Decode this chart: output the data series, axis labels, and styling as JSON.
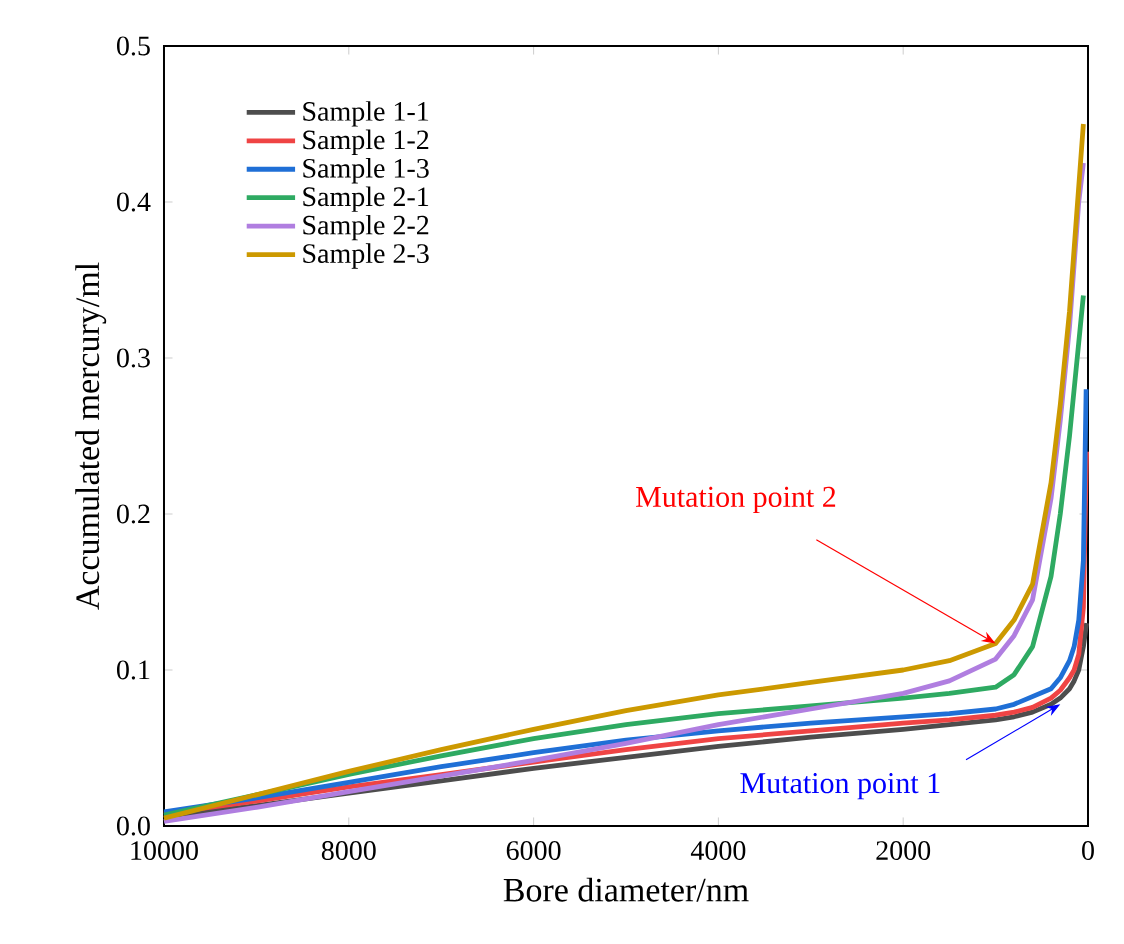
{
  "chart_data": {
    "type": "line",
    "xlabel": "Bore diameter/nm",
    "ylabel": "Accumulated mercury/ml",
    "xlim": [
      10000,
      0
    ],
    "ylim": [
      0,
      0.5
    ],
    "xticks": [
      10000,
      8000,
      6000,
      4000,
      2000,
      0
    ],
    "yticks": [
      {
        "value": 0,
        "label": "0.0"
      },
      0.1,
      0.2,
      0.3,
      0.4,
      0.5
    ],
    "legend": "top left",
    "grid": false,
    "marker": "none",
    "line_style": "solid",
    "series": [
      {
        "name": "Sample 1-1",
        "color": "#4d4d4d",
        "x": [
          10000,
          9000,
          8000,
          7000,
          6000,
          5000,
          4000,
          3000,
          2000,
          1500,
          1000,
          800,
          600,
          400,
          300,
          200,
          150,
          100,
          50,
          15
        ],
        "values": [
          0.006,
          0.013,
          0.021,
          0.029,
          0.037,
          0.044,
          0.051,
          0.057,
          0.062,
          0.065,
          0.068,
          0.07,
          0.073,
          0.078,
          0.082,
          0.088,
          0.093,
          0.1,
          0.115,
          0.13
        ]
      },
      {
        "name": "Sample 1-2",
        "color": "#ef4444",
        "x": [
          10000,
          9000,
          8000,
          7000,
          6000,
          5000,
          4000,
          3000,
          2000,
          1500,
          1000,
          800,
          600,
          400,
          300,
          200,
          150,
          100,
          50,
          15
        ],
        "values": [
          0.008,
          0.016,
          0.025,
          0.033,
          0.041,
          0.049,
          0.056,
          0.061,
          0.066,
          0.068,
          0.071,
          0.073,
          0.076,
          0.082,
          0.087,
          0.095,
          0.1,
          0.11,
          0.14,
          0.24
        ]
      },
      {
        "name": "Sample 1-3",
        "color": "#1f6fd6",
        "x": [
          10000,
          9000,
          8000,
          7000,
          6000,
          5000,
          4000,
          3000,
          2000,
          1500,
          1000,
          800,
          600,
          400,
          300,
          200,
          150,
          100,
          50,
          20
        ],
        "values": [
          0.009,
          0.018,
          0.028,
          0.038,
          0.047,
          0.055,
          0.061,
          0.066,
          0.07,
          0.072,
          0.075,
          0.078,
          0.083,
          0.088,
          0.095,
          0.106,
          0.115,
          0.132,
          0.17,
          0.28
        ]
      },
      {
        "name": "Sample 2-1",
        "color": "#2eaa62",
        "x": [
          10000,
          9000,
          8000,
          7000,
          6000,
          5000,
          4000,
          3000,
          2000,
          1500,
          1000,
          800,
          600,
          400,
          300,
          200,
          150,
          100,
          50
        ],
        "values": [
          0.007,
          0.02,
          0.033,
          0.045,
          0.056,
          0.065,
          0.072,
          0.077,
          0.082,
          0.085,
          0.089,
          0.097,
          0.115,
          0.16,
          0.2,
          0.25,
          0.28,
          0.31,
          0.34
        ]
      },
      {
        "name": "Sample 2-2",
        "color": "#b07ee0",
        "x": [
          10000,
          9000,
          8000,
          7000,
          6000,
          5000,
          4000,
          3000,
          2000,
          1500,
          1000,
          800,
          600,
          400,
          300,
          200,
          150,
          100,
          50
        ],
        "values": [
          0.003,
          0.012,
          0.022,
          0.032,
          0.042,
          0.053,
          0.065,
          0.075,
          0.085,
          0.093,
          0.107,
          0.122,
          0.145,
          0.21,
          0.26,
          0.32,
          0.36,
          0.4,
          0.425
        ]
      },
      {
        "name": "Sample 2-3",
        "color": "#cc9900",
        "x": [
          10000,
          9000,
          8000,
          7000,
          6000,
          5000,
          4000,
          3000,
          2000,
          1500,
          1000,
          800,
          600,
          400,
          300,
          200,
          150,
          100,
          50
        ],
        "values": [
          0.005,
          0.02,
          0.035,
          0.049,
          0.062,
          0.074,
          0.084,
          0.092,
          0.1,
          0.106,
          0.117,
          0.132,
          0.155,
          0.22,
          0.27,
          0.33,
          0.37,
          0.41,
          0.45
        ]
      }
    ],
    "annotations": [
      {
        "text": "Mutation point 2",
        "x": 1000,
        "y": 0.117
      },
      {
        "text": "Mutation point 1",
        "x": 300,
        "y": 0.078
      }
    ]
  }
}
